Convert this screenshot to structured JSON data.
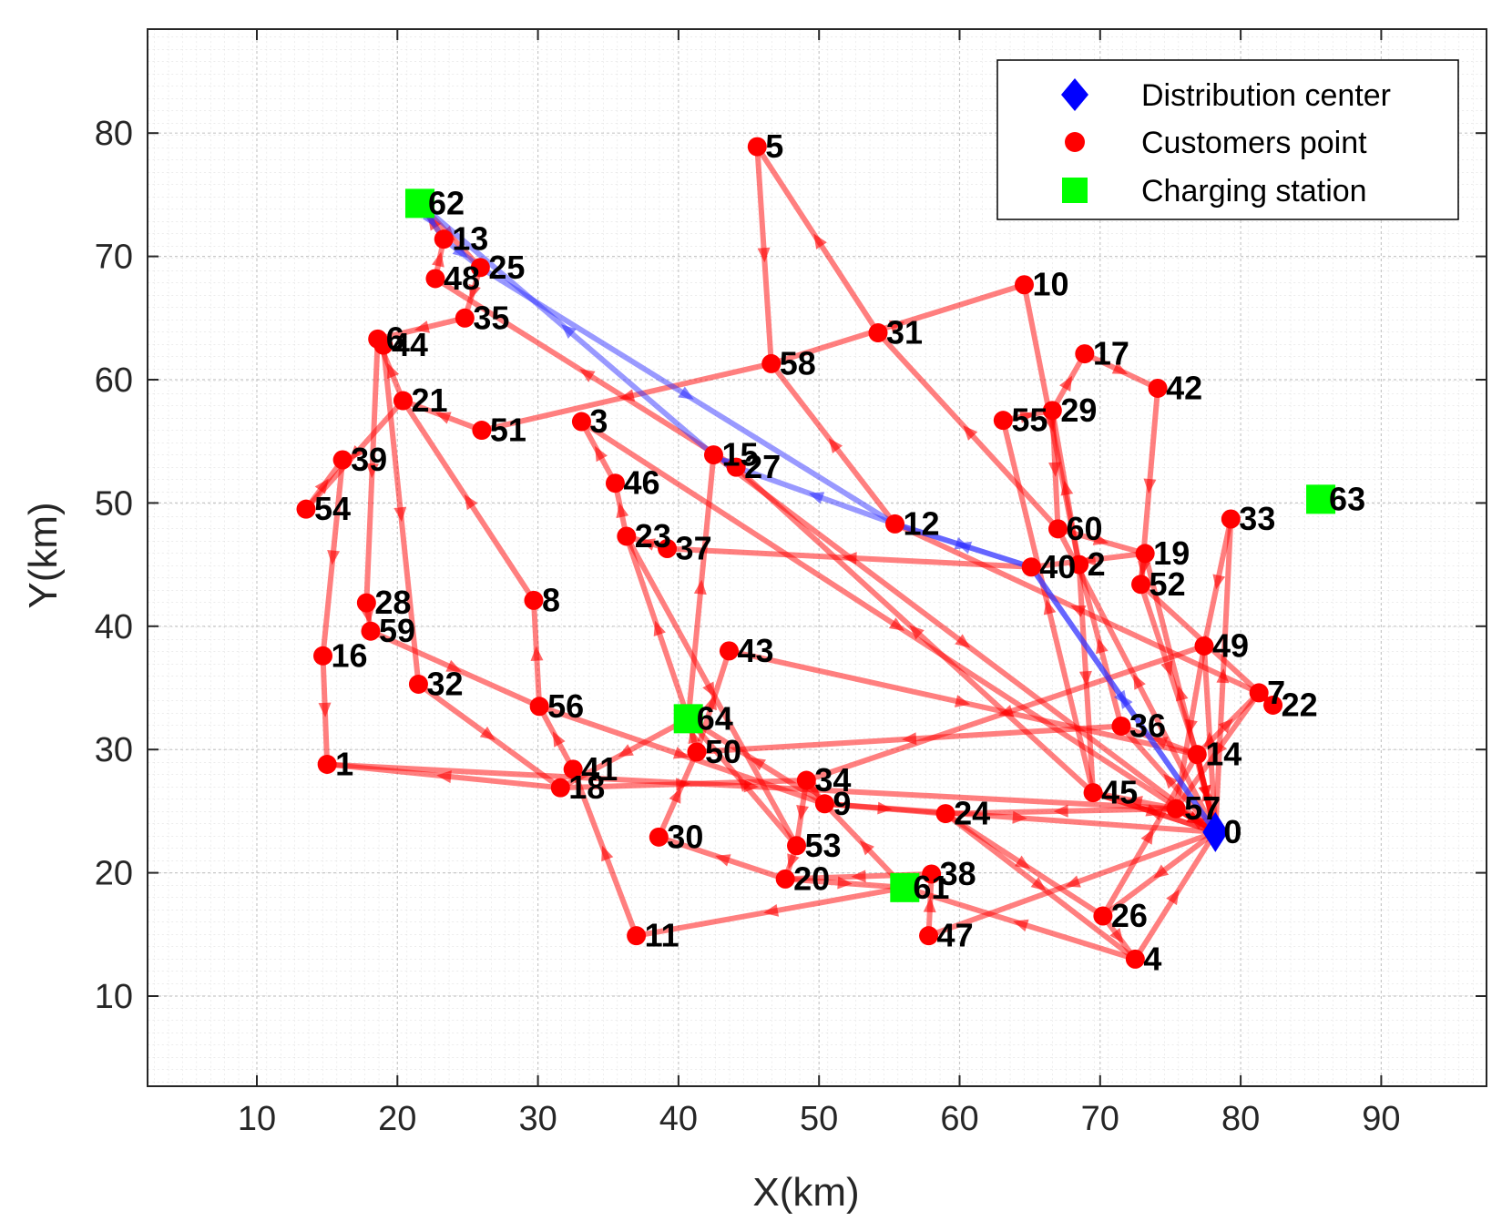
{
  "chart_data": {
    "type": "scatter",
    "subtype": "vehicle-routing-map",
    "xlabel": "X(km)",
    "ylabel": "Y(km)",
    "xlim": [
      2,
      97
    ],
    "ylim": [
      2,
      88
    ],
    "xticks": [
      10,
      20,
      30,
      40,
      50,
      60,
      70,
      80,
      90
    ],
    "yticks": [
      10,
      20,
      30,
      40,
      50,
      60,
      70,
      80
    ],
    "grid": true,
    "legend": {
      "position": "top-right",
      "entries": [
        {
          "label": "Distribution center",
          "marker": "diamond",
          "color": "#0000ff"
        },
        {
          "label": "Customers point",
          "marker": "circle",
          "color": "#ff0000"
        },
        {
          "label": "Charging station",
          "marker": "square",
          "color": "#00ff00"
        }
      ]
    },
    "colors": {
      "customer": "#ff0000",
      "depot": "#0000ff",
      "station": "#00ff00",
      "route_red": "#ff0000",
      "route_blue": "#3333ff"
    },
    "depot": {
      "id": "0",
      "x": 78.2,
      "y": 23.3
    },
    "stations": [
      {
        "id": "61",
        "x": 56.1,
        "y": 18.8
      },
      {
        "id": "62",
        "x": 21.6,
        "y": 74.3
      },
      {
        "id": "63",
        "x": 85.7,
        "y": 50.3
      },
      {
        "id": "64",
        "x": 40.7,
        "y": 32.5
      }
    ],
    "customers": [
      {
        "id": "1",
        "x": 15.0,
        "y": 28.8
      },
      {
        "id": "2",
        "x": 68.5,
        "y": 45.0
      },
      {
        "id": "3",
        "x": 33.1,
        "y": 56.6
      },
      {
        "id": "4",
        "x": 72.5,
        "y": 13.0
      },
      {
        "id": "5",
        "x": 45.6,
        "y": 78.9
      },
      {
        "id": "6",
        "x": 18.6,
        "y": 63.3
      },
      {
        "id": "7",
        "x": 81.3,
        "y": 34.6
      },
      {
        "id": "8",
        "x": 29.7,
        "y": 42.1
      },
      {
        "id": "9",
        "x": 50.4,
        "y": 25.6
      },
      {
        "id": "10",
        "x": 64.6,
        "y": 67.7
      },
      {
        "id": "11",
        "x": 37.0,
        "y": 14.9
      },
      {
        "id": "12",
        "x": 55.4,
        "y": 48.3
      },
      {
        "id": "13",
        "x": 23.3,
        "y": 71.4
      },
      {
        "id": "14",
        "x": 76.9,
        "y": 29.6
      },
      {
        "id": "15",
        "x": 42.5,
        "y": 53.9
      },
      {
        "id": "16",
        "x": 14.7,
        "y": 37.6
      },
      {
        "id": "17",
        "x": 68.9,
        "y": 62.1
      },
      {
        "id": "18",
        "x": 31.6,
        "y": 26.9
      },
      {
        "id": "19",
        "x": 73.2,
        "y": 45.9
      },
      {
        "id": "20",
        "x": 47.6,
        "y": 19.5
      },
      {
        "id": "21",
        "x": 20.4,
        "y": 58.3
      },
      {
        "id": "22",
        "x": 82.3,
        "y": 33.6
      },
      {
        "id": "23",
        "x": 36.3,
        "y": 47.3
      },
      {
        "id": "24",
        "x": 59.0,
        "y": 24.8
      },
      {
        "id": "25",
        "x": 25.9,
        "y": 69.1
      },
      {
        "id": "26",
        "x": 70.2,
        "y": 16.5
      },
      {
        "id": "27",
        "x": 44.1,
        "y": 52.9
      },
      {
        "id": "28",
        "x": 17.8,
        "y": 41.9
      },
      {
        "id": "29",
        "x": 66.6,
        "y": 57.5
      },
      {
        "id": "30",
        "x": 38.6,
        "y": 22.9
      },
      {
        "id": "31",
        "x": 54.2,
        "y": 63.8
      },
      {
        "id": "32",
        "x": 21.5,
        "y": 35.3
      },
      {
        "id": "33",
        "x": 79.3,
        "y": 48.7
      },
      {
        "id": "34",
        "x": 49.1,
        "y": 27.5
      },
      {
        "id": "35",
        "x": 24.8,
        "y": 65.0
      },
      {
        "id": "36",
        "x": 71.5,
        "y": 31.9
      },
      {
        "id": "37",
        "x": 39.2,
        "y": 46.3
      },
      {
        "id": "38",
        "x": 58.0,
        "y": 19.9
      },
      {
        "id": "39",
        "x": 16.1,
        "y": 53.5
      },
      {
        "id": "40",
        "x": 65.1,
        "y": 44.8
      },
      {
        "id": "41",
        "x": 32.5,
        "y": 28.4
      },
      {
        "id": "42",
        "x": 74.1,
        "y": 59.3
      },
      {
        "id": "43",
        "x": 43.6,
        "y": 38.0
      },
      {
        "id": "44",
        "x": 19.0,
        "y": 62.8
      },
      {
        "id": "45",
        "x": 69.5,
        "y": 26.5
      },
      {
        "id": "46",
        "x": 35.5,
        "y": 51.6
      },
      {
        "id": "47",
        "x": 57.8,
        "y": 14.9
      },
      {
        "id": "48",
        "x": 22.7,
        "y": 68.2
      },
      {
        "id": "49",
        "x": 77.4,
        "y": 38.4
      },
      {
        "id": "50",
        "x": 41.3,
        "y": 29.8
      },
      {
        "id": "51",
        "x": 26.0,
        "y": 55.9
      },
      {
        "id": "52",
        "x": 72.9,
        "y": 43.4
      },
      {
        "id": "53",
        "x": 48.4,
        "y": 22.2
      },
      {
        "id": "54",
        "x": 13.5,
        "y": 49.5
      },
      {
        "id": "55",
        "x": 63.1,
        "y": 56.7
      },
      {
        "id": "56",
        "x": 30.1,
        "y": 33.5
      },
      {
        "id": "57",
        "x": 75.4,
        "y": 25.2
      },
      {
        "id": "58",
        "x": 46.6,
        "y": 61.3
      },
      {
        "id": "59",
        "x": 18.1,
        "y": 39.6
      },
      {
        "id": "60",
        "x": 67.0,
        "y": 47.9
      }
    ],
    "routes": [
      {
        "color": "blue",
        "path": [
          "0",
          "40",
          "12",
          "27",
          "15",
          "62",
          "13",
          "25",
          "12",
          "40",
          "0"
        ]
      },
      {
        "color": "red",
        "path": [
          "0",
          "14",
          "36",
          "2",
          "29",
          "17",
          "42",
          "52",
          "22",
          "7",
          "57",
          "0"
        ]
      },
      {
        "color": "red",
        "path": [
          "0",
          "33",
          "49",
          "57",
          "45",
          "55",
          "29",
          "60",
          "19",
          "52",
          "14",
          "0"
        ]
      },
      {
        "color": "red",
        "path": [
          "0",
          "60",
          "31",
          "5",
          "58",
          "10",
          "2",
          "45",
          "0"
        ]
      },
      {
        "color": "red",
        "path": [
          "0",
          "26",
          "14",
          "7",
          "12",
          "58",
          "51",
          "21",
          "54",
          "39",
          "16",
          "1",
          "57",
          "0"
        ]
      },
      {
        "color": "red",
        "path": [
          "0",
          "57",
          "24",
          "26",
          "4",
          "61",
          "11",
          "41",
          "56",
          "8",
          "21",
          "6",
          "44",
          "32",
          "18",
          "34",
          "9",
          "0"
        ]
      },
      {
        "color": "red",
        "path": [
          "0",
          "47",
          "38",
          "20",
          "30",
          "50",
          "43",
          "14",
          "0"
        ]
      },
      {
        "color": "red",
        "path": [
          "0",
          "45",
          "27",
          "48",
          "13",
          "62",
          "25",
          "35",
          "6",
          "28",
          "59",
          "56",
          "9",
          "24",
          "4",
          "0"
        ]
      },
      {
        "color": "red",
        "path": [
          "0",
          "49",
          "34",
          "53",
          "20",
          "61",
          "9",
          "64",
          "23",
          "46",
          "3",
          "0"
        ]
      },
      {
        "color": "red",
        "path": [
          "0",
          "19",
          "40",
          "37",
          "23",
          "53",
          "64",
          "15",
          "0"
        ]
      },
      {
        "color": "red",
        "path": [
          "0",
          "36",
          "50",
          "64",
          "18",
          "1"
        ]
      }
    ]
  }
}
